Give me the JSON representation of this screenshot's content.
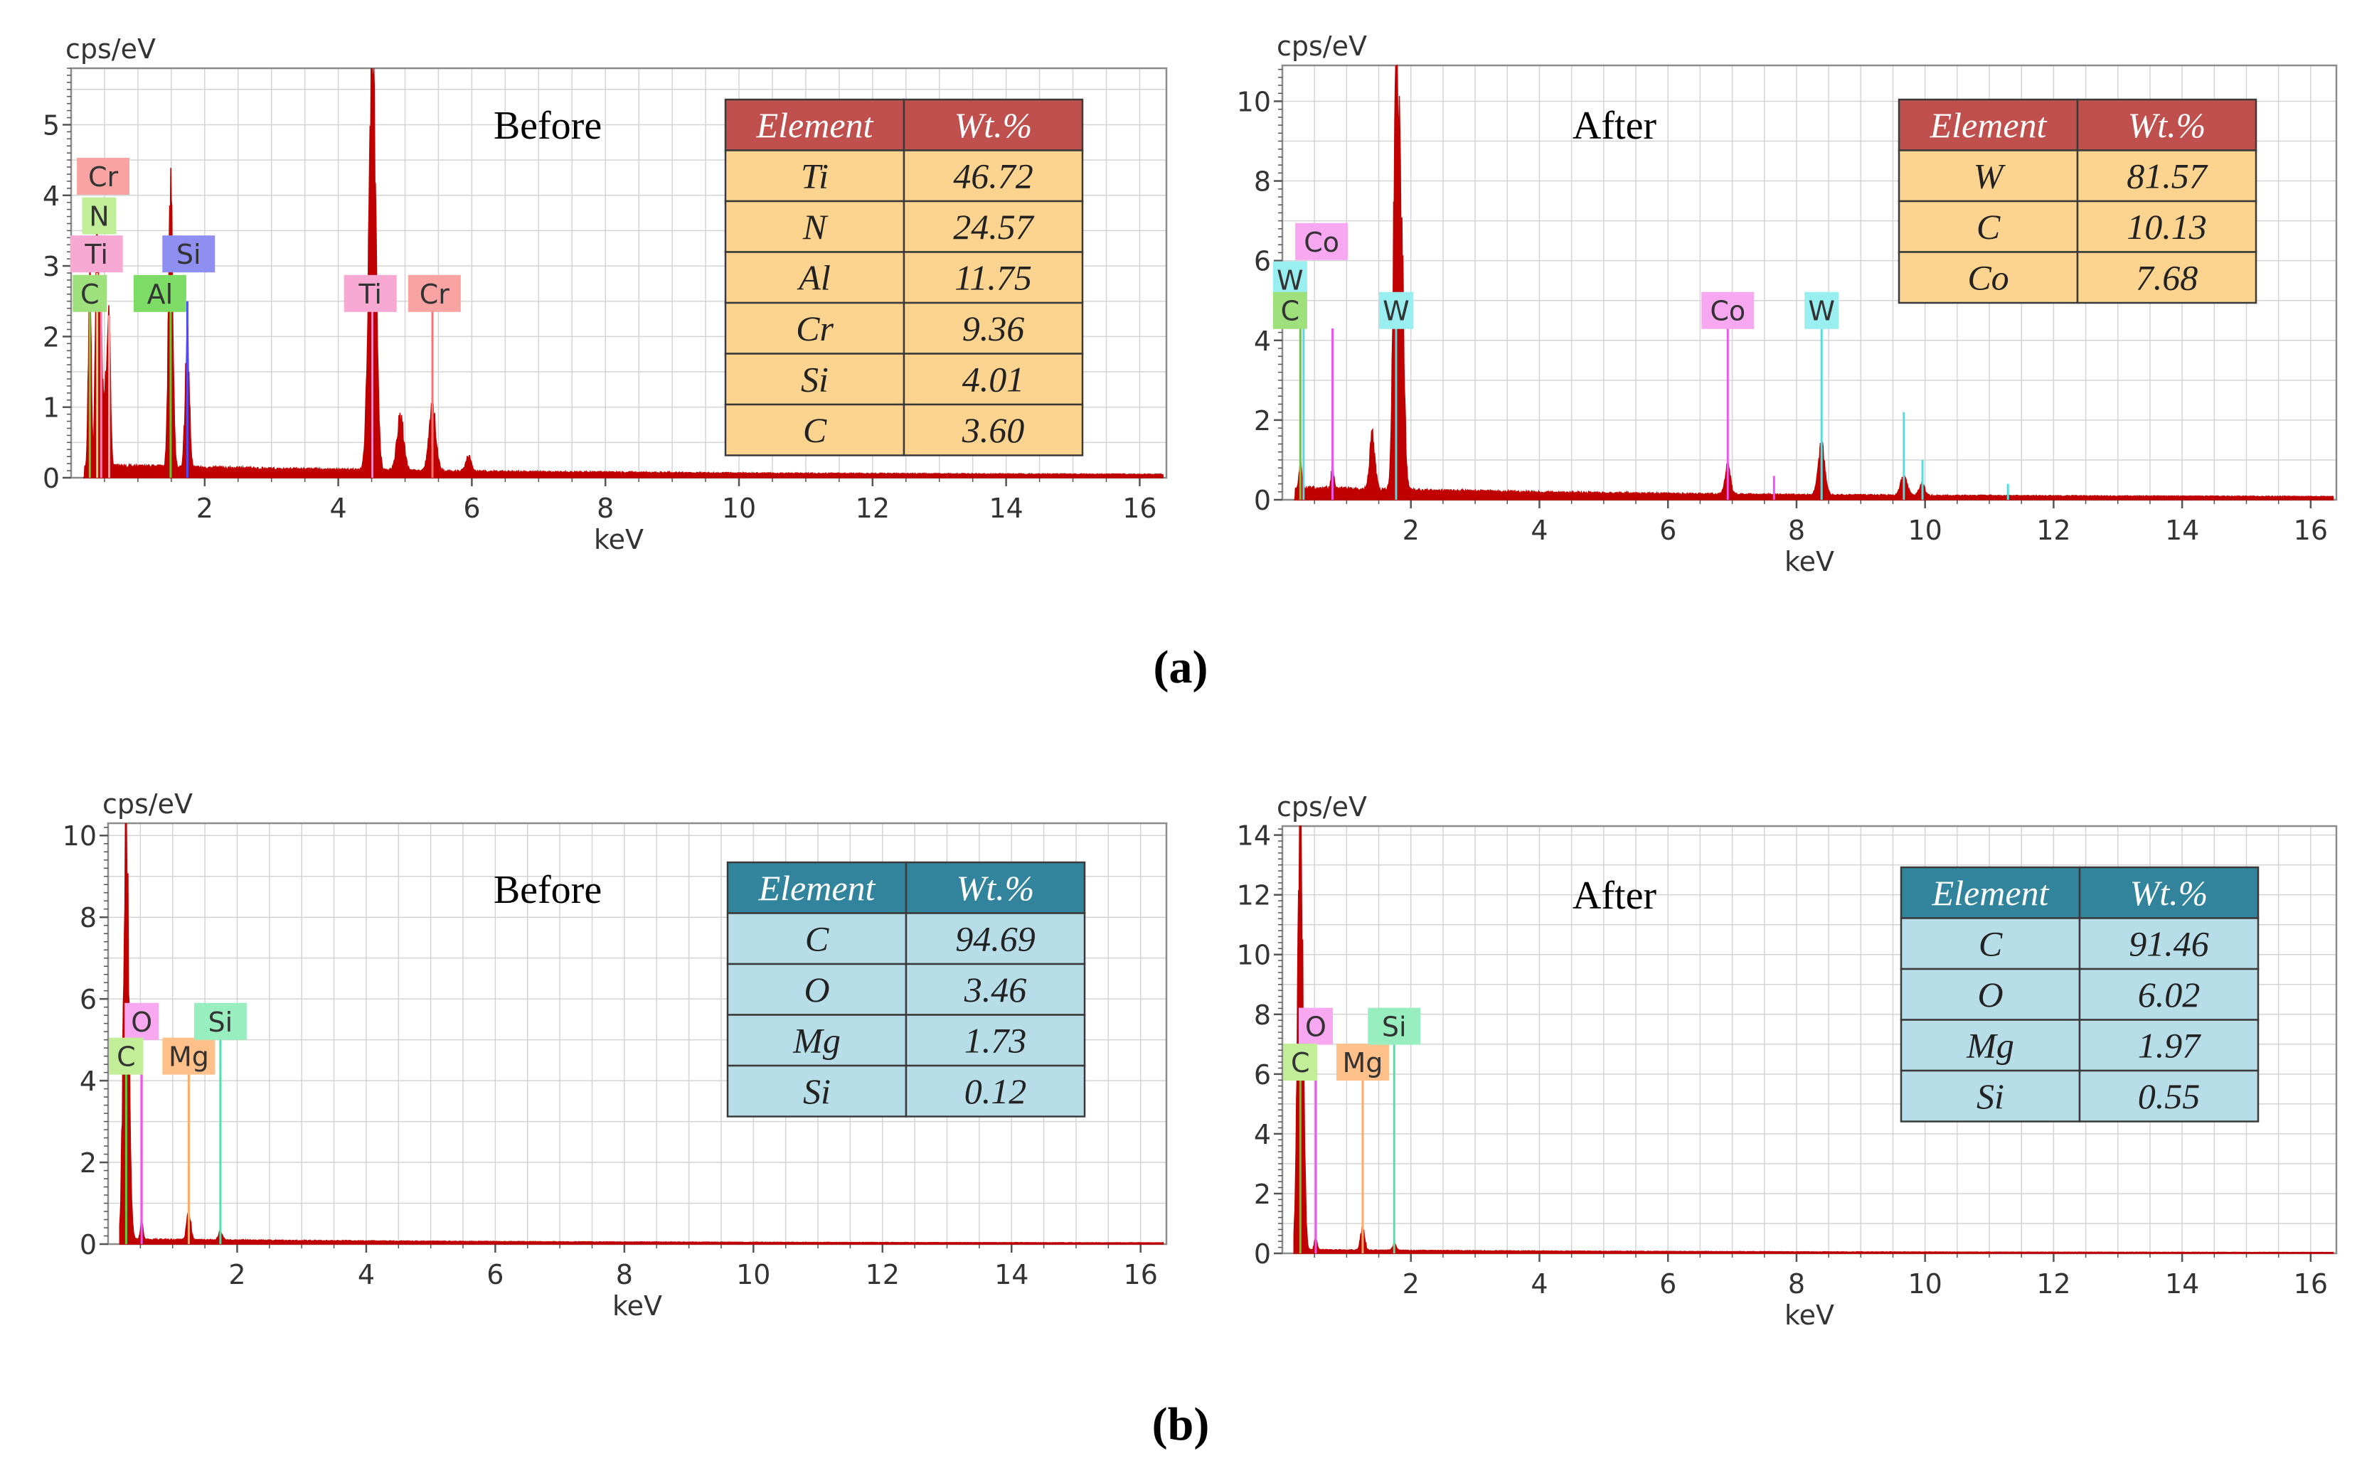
{
  "figure": {
    "caption_a": "(a)",
    "caption_b": "(b)"
  },
  "colors": {
    "spectrum": "#c00000",
    "grid": "#d4d4d4",
    "frame": "#8c8c8c",
    "red_header": "#c0504d",
    "red_cell": "#fcd48f",
    "teal_header": "#31849b",
    "teal_cell": "#b7dde8"
  },
  "chart_data": [
    {
      "id": "a_before",
      "type": "line",
      "title": "Before",
      "ylabel": "cps/eV",
      "xlabel": "keV",
      "xlim": [
        0,
        16.4
      ],
      "ylim": [
        0,
        5.8
      ],
      "xticks": [
        2,
        4,
        6,
        8,
        10,
        12,
        14,
        16
      ],
      "yticks": [
        0,
        1,
        2,
        3,
        4,
        5
      ],
      "background": 0.15,
      "peaks": [
        {
          "x": 0.28,
          "h": 2.8,
          "w": 0.02
        },
        {
          "x": 0.39,
          "h": 3.4,
          "w": 0.025
        },
        {
          "x": 0.45,
          "h": 1.9,
          "w": 0.02
        },
        {
          "x": 0.52,
          "h": 1.2,
          "w": 0.025
        },
        {
          "x": 0.57,
          "h": 1.8,
          "w": 0.02
        },
        {
          "x": 1.49,
          "h": 4.0,
          "w": 0.03
        },
        {
          "x": 1.74,
          "h": 1.8,
          "w": 0.03
        },
        {
          "x": 4.51,
          "h": 5.8,
          "w": 0.05
        },
        {
          "x": 4.93,
          "h": 0.75,
          "w": 0.05
        },
        {
          "x": 5.41,
          "h": 0.9,
          "w": 0.05
        },
        {
          "x": 5.95,
          "h": 0.2,
          "w": 0.04
        }
      ],
      "element_lines": [
        {
          "x": 0.28,
          "h": 2.6,
          "color": "#66cc33"
        },
        {
          "x": 0.39,
          "h": 2.9,
          "color": "#b5e08a"
        },
        {
          "x": 0.45,
          "h": 2.5,
          "color": "#ff7fbf"
        },
        {
          "x": 0.57,
          "h": 2.3,
          "color": "#ff9999"
        },
        {
          "x": 1.49,
          "h": 2.4,
          "color": "#66cc33"
        },
        {
          "x": 1.74,
          "h": 2.5,
          "color": "#4d4dff"
        },
        {
          "x": 4.51,
          "h": 2.4,
          "color": "#ff7fbf"
        },
        {
          "x": 5.41,
          "h": 2.4,
          "color": "#ff7070"
        }
      ],
      "labels": [
        {
          "text": "Cr",
          "lx": 0.48,
          "ly": 4.27,
          "color": "#f9a3a3"
        },
        {
          "text": "N",
          "lx": 0.42,
          "ly": 3.71,
          "color": "#c2ee9a"
        },
        {
          "text": "Ti",
          "lx": 0.38,
          "ly": 3.17,
          "color": "#f7a8d3"
        },
        {
          "text": "C",
          "lx": 0.28,
          "ly": 2.61,
          "color": "#9ee07b"
        },
        {
          "text": "Al",
          "lx": 1.33,
          "ly": 2.61,
          "color": "#7ddc66"
        },
        {
          "text": "Si",
          "lx": 1.76,
          "ly": 3.17,
          "color": "#8f8ff2"
        },
        {
          "text": "Ti",
          "lx": 4.48,
          "ly": 2.61,
          "color": "#f7a8d3"
        },
        {
          "text": "Cr",
          "lx": 5.44,
          "ly": 2.61,
          "color": "#f9a3a3"
        }
      ],
      "table": {
        "header": [
          "Element",
          "Wt.%"
        ],
        "rows": [
          [
            "Ti",
            "46.72"
          ],
          [
            "N",
            "24.57"
          ],
          [
            "Al",
            "11.75"
          ],
          [
            "Cr",
            "9.36"
          ],
          [
            "Si",
            "4.01"
          ],
          [
            "C",
            "3.60"
          ]
        ],
        "theme": "red"
      }
    },
    {
      "id": "a_after",
      "type": "line",
      "title": "After",
      "ylabel": "cps/eV",
      "xlabel": "keV",
      "xlim": [
        0,
        16.4
      ],
      "ylim": [
        0,
        10.9
      ],
      "xticks": [
        2,
        4,
        6,
        8,
        10,
        12,
        14,
        16
      ],
      "yticks": [
        0,
        2,
        4,
        6,
        8,
        10
      ],
      "background": 0.25,
      "peaks": [
        {
          "x": 0.28,
          "h": 0.6,
          "w": 0.02
        },
        {
          "x": 0.78,
          "h": 0.5,
          "w": 0.02
        },
        {
          "x": 1.4,
          "h": 1.3,
          "w": 0.04
        },
        {
          "x": 1.77,
          "h": 10.7,
          "w": 0.04
        },
        {
          "x": 1.85,
          "h": 6.0,
          "w": 0.04
        },
        {
          "x": 6.93,
          "h": 0.7,
          "w": 0.04
        },
        {
          "x": 8.39,
          "h": 1.2,
          "w": 0.05
        },
        {
          "x": 9.67,
          "h": 0.5,
          "w": 0.05
        },
        {
          "x": 9.95,
          "h": 0.3,
          "w": 0.04
        }
      ],
      "element_lines": [
        {
          "x": 0.28,
          "h": 4.7,
          "color": "#66cc33"
        },
        {
          "x": 0.33,
          "h": 4.9,
          "color": "#55dddd"
        },
        {
          "x": 0.78,
          "h": 4.3,
          "color": "#ee55ee"
        },
        {
          "x": 1.77,
          "h": 4.5,
          "color": "#55dddd"
        },
        {
          "x": 6.93,
          "h": 4.5,
          "color": "#ee55ee"
        },
        {
          "x": 7.65,
          "h": 0.6,
          "color": "#ee55ee"
        },
        {
          "x": 8.39,
          "h": 4.5,
          "color": "#55dddd"
        },
        {
          "x": 9.67,
          "h": 2.2,
          "color": "#55dddd"
        },
        {
          "x": 9.96,
          "h": 1.0,
          "color": "#55dddd"
        },
        {
          "x": 11.29,
          "h": 0.4,
          "color": "#55dddd"
        }
      ],
      "labels": [
        {
          "text": "Co",
          "lx": 0.61,
          "ly": 6.48,
          "color": "#f7a8f0"
        },
        {
          "text": "W",
          "lx": 0.12,
          "ly": 5.52,
          "color": "#99eef0"
        },
        {
          "text": "C",
          "lx": 0.12,
          "ly": 4.75,
          "color": "#9ee07b"
        },
        {
          "text": "W",
          "lx": 1.77,
          "ly": 4.75,
          "color": "#99eef0"
        },
        {
          "text": "Co",
          "lx": 6.93,
          "ly": 4.75,
          "color": "#f7a8f0"
        },
        {
          "text": "W",
          "lx": 8.39,
          "ly": 4.75,
          "color": "#99eef0"
        }
      ],
      "table": {
        "header": [
          "Element",
          "Wt.%"
        ],
        "rows": [
          [
            "W",
            "81.57"
          ],
          [
            "C",
            "10.13"
          ],
          [
            "Co",
            "7.68"
          ]
        ],
        "theme": "red"
      }
    },
    {
      "id": "b_before",
      "type": "line",
      "title": "Before",
      "ylabel": "cps/eV",
      "xlabel": "keV",
      "xlim": [
        0,
        16.4
      ],
      "ylim": [
        0,
        10.3
      ],
      "xticks": [
        2,
        4,
        6,
        8,
        10,
        12,
        14,
        16
      ],
      "yticks": [
        0,
        2,
        4,
        6,
        8,
        10
      ],
      "background": 0.1,
      "peaks": [
        {
          "x": 0.28,
          "h": 10.3,
          "w": 0.04
        },
        {
          "x": 0.52,
          "h": 0.4,
          "w": 0.02
        },
        {
          "x": 1.25,
          "h": 0.7,
          "w": 0.03
        },
        {
          "x": 1.74,
          "h": 0.2,
          "w": 0.03
        }
      ],
      "element_lines": [
        {
          "x": 0.28,
          "h": 4.3,
          "color": "#66cc33"
        },
        {
          "x": 0.52,
          "h": 5.0,
          "color": "#ee55ee"
        },
        {
          "x": 1.25,
          "h": 4.3,
          "color": "#ffaa66"
        },
        {
          "x": 1.74,
          "h": 5.0,
          "color": "#55ddaa"
        }
      ],
      "labels": [
        {
          "text": "O",
          "lx": 0.52,
          "ly": 5.45,
          "color": "#f7a8f0"
        },
        {
          "text": "C",
          "lx": 0.28,
          "ly": 4.6,
          "color": "#c2ee9a"
        },
        {
          "text": "Mg",
          "lx": 1.25,
          "ly": 4.6,
          "color": "#ffc08a"
        },
        {
          "text": "Si",
          "lx": 1.74,
          "ly": 5.45,
          "color": "#99eec0"
        }
      ],
      "table": {
        "header": [
          "Element",
          "Wt.%"
        ],
        "rows": [
          [
            "C",
            "94.69"
          ],
          [
            "O",
            "3.46"
          ],
          [
            "Mg",
            "1.73"
          ],
          [
            "Si",
            "0.12"
          ]
        ],
        "theme": "teal"
      }
    },
    {
      "id": "b_after",
      "type": "line",
      "title": "After",
      "ylabel": "cps/eV",
      "xlabel": "keV",
      "xlim": [
        0,
        16.4
      ],
      "ylim": [
        0,
        14.3
      ],
      "xticks": [
        2,
        4,
        6,
        8,
        10,
        12,
        14,
        16
      ],
      "yticks": [
        0,
        2,
        4,
        6,
        8,
        10,
        12,
        14
      ],
      "background": 0.1,
      "peaks": [
        {
          "x": 0.28,
          "h": 14.3,
          "w": 0.04
        },
        {
          "x": 0.52,
          "h": 0.4,
          "w": 0.02
        },
        {
          "x": 1.25,
          "h": 0.8,
          "w": 0.03
        },
        {
          "x": 1.74,
          "h": 0.2,
          "w": 0.03
        }
      ],
      "element_lines": [
        {
          "x": 0.28,
          "h": 5.8,
          "color": "#66cc33"
        },
        {
          "x": 0.52,
          "h": 7.0,
          "color": "#ee55ee"
        },
        {
          "x": 1.25,
          "h": 5.8,
          "color": "#ffaa66"
        },
        {
          "x": 1.74,
          "h": 7.0,
          "color": "#55ddaa"
        }
      ],
      "labels": [
        {
          "text": "O",
          "lx": 0.52,
          "ly": 7.6,
          "color": "#f7a8f0"
        },
        {
          "text": "C",
          "lx": 0.28,
          "ly": 6.4,
          "color": "#c2ee9a"
        },
        {
          "text": "Mg",
          "lx": 1.25,
          "ly": 6.4,
          "color": "#ffc08a"
        },
        {
          "text": "Si",
          "lx": 1.74,
          "ly": 7.6,
          "color": "#99eec0"
        }
      ],
      "table": {
        "header": [
          "Element",
          "Wt.%"
        ],
        "rows": [
          [
            "C",
            "91.46"
          ],
          [
            "O",
            "6.02"
          ],
          [
            "Mg",
            "1.97"
          ],
          [
            "Si",
            "0.55"
          ]
        ],
        "theme": "teal"
      }
    }
  ]
}
